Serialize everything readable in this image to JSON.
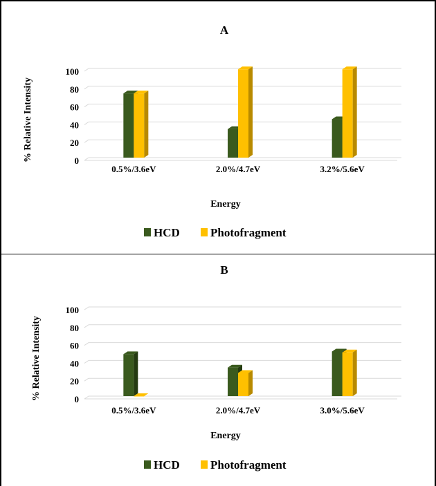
{
  "colors": {
    "HCD": "#3a5a1e",
    "HCD_side": "#243a11",
    "Photofragment": "#ffc000",
    "Photofragment_side": "#b88a00",
    "grid": "#d9d9d9"
  },
  "chart_data": [
    {
      "type": "bar",
      "title": "A",
      "categories": [
        "0.5%/3.6eV",
        "2.0%/4.7eV",
        "3.2%/5.6eV"
      ],
      "series": [
        {
          "name": "HCD",
          "values": [
            72,
            32,
            43
          ]
        },
        {
          "name": "Photofragment",
          "values": [
            72,
            99,
            99
          ]
        }
      ],
      "xlabel": "Energy",
      "ylabel": "% Relative Intensity",
      "ylim": [
        0,
        100
      ],
      "yticks": [
        "0",
        "20",
        "40",
        "60",
        "80",
        "100"
      ],
      "grid": true,
      "legend_position": "bottom"
    },
    {
      "type": "bar",
      "title": "B",
      "categories": [
        "0.5%/3.6eV",
        "2.0%/4.7eV",
        "3.0%/5.6eV"
      ],
      "series": [
        {
          "name": "HCD",
          "values": [
            47,
            32,
            50
          ]
        },
        {
          "name": "Photofragment",
          "values": [
            0,
            26,
            49
          ]
        }
      ],
      "xlabel": "Energy",
      "ylabel": "% Relative Intensity",
      "ylim": [
        0,
        100
      ],
      "yticks": [
        "0",
        "20",
        "40",
        "60",
        "80",
        "100"
      ],
      "grid": true,
      "legend_position": "bottom"
    }
  ]
}
